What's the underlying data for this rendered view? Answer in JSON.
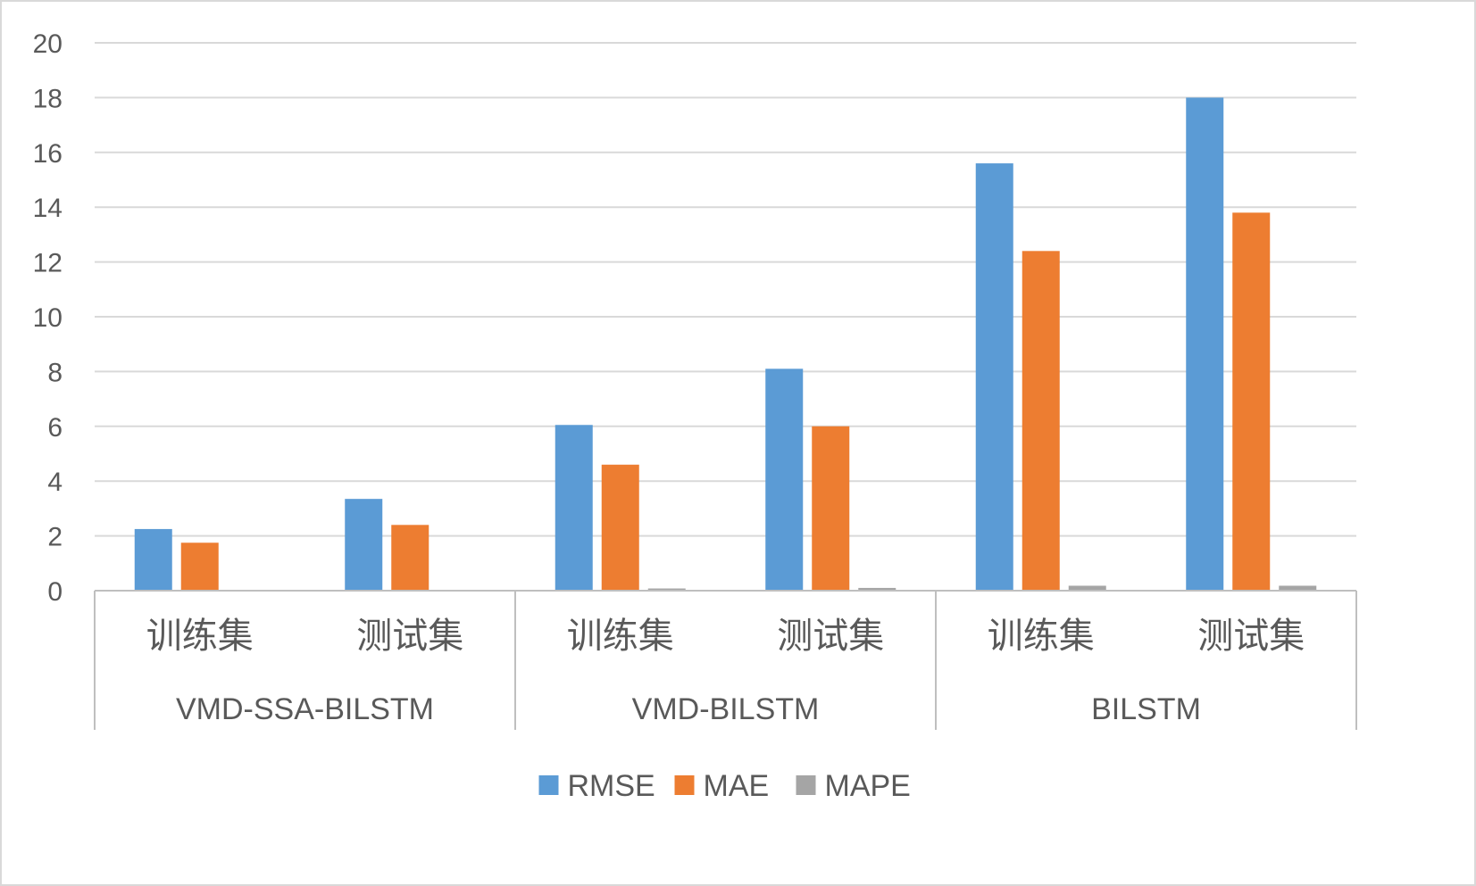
{
  "chart_data": {
    "type": "bar",
    "groups": [
      {
        "label": "VMD-SSA-BILSTM",
        "categories": [
          "训练集",
          "测试集"
        ]
      },
      {
        "label": "VMD-BILSTM",
        "categories": [
          "训练集",
          "测试集"
        ]
      },
      {
        "label": "BILSTM",
        "categories": [
          "训练集",
          "测试集"
        ]
      }
    ],
    "series": [
      {
        "name": "RMSE",
        "color": "#5B9BD5",
        "values": [
          2.25,
          3.35,
          6.05,
          8.1,
          15.6,
          18.0
        ]
      },
      {
        "name": "MAE",
        "color": "#ED7D31",
        "values": [
          1.75,
          2.4,
          4.6,
          6.0,
          12.4,
          13.8
        ]
      },
      {
        "name": "MAPE",
        "color": "#A5A5A5",
        "values": [
          0.02,
          0.03,
          0.08,
          0.1,
          0.18,
          0.18
        ]
      }
    ],
    "title": "",
    "xlabel": "",
    "ylabel": "",
    "ylim": [
      0,
      20
    ],
    "yticks": [
      "0",
      "2",
      "4",
      "6",
      "8",
      "10",
      "12",
      "14",
      "16",
      "18",
      "20"
    ],
    "grid": true,
    "legend_position": "bottom"
  }
}
